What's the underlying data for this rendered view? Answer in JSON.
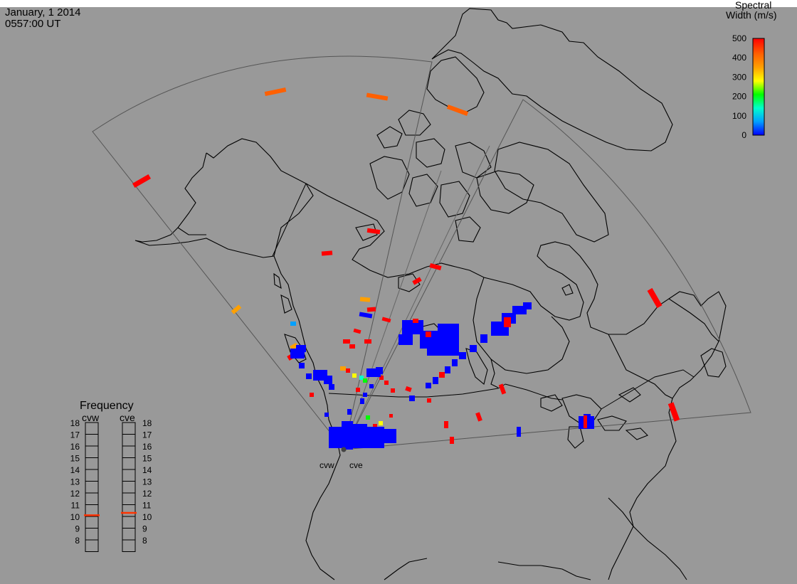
{
  "header": {
    "date": "January, 1 2014",
    "time": "0557:00 UT"
  },
  "colorbar": {
    "title_line1": "Spectral",
    "title_line2": "Width (m/s)",
    "ticks": [
      "500",
      "400",
      "300",
      "200",
      "100",
      "0"
    ],
    "range": [
      0,
      500
    ],
    "colors": [
      "#0000ff",
      "#00a0ff",
      "#00ffcc",
      "#00ff00",
      "#ffff00",
      "#ffa000",
      "#ff6000",
      "#ff0000"
    ]
  },
  "frequency_panel": {
    "title": "Frequency",
    "radars": [
      "cvw",
      "cve"
    ],
    "scale": [
      "18",
      "17",
      "16",
      "15",
      "14",
      "13",
      "12",
      "11",
      "10",
      "9",
      "8"
    ],
    "selected": {
      "cvw": 10.6,
      "cve": 10.8
    },
    "marker_color": "#ff3300"
  },
  "radar_sites": {
    "labels": [
      "cvw",
      "cve"
    ]
  },
  "colors": {
    "background": "#999999",
    "coastline": "#000000",
    "fov_outline": "#555555"
  }
}
